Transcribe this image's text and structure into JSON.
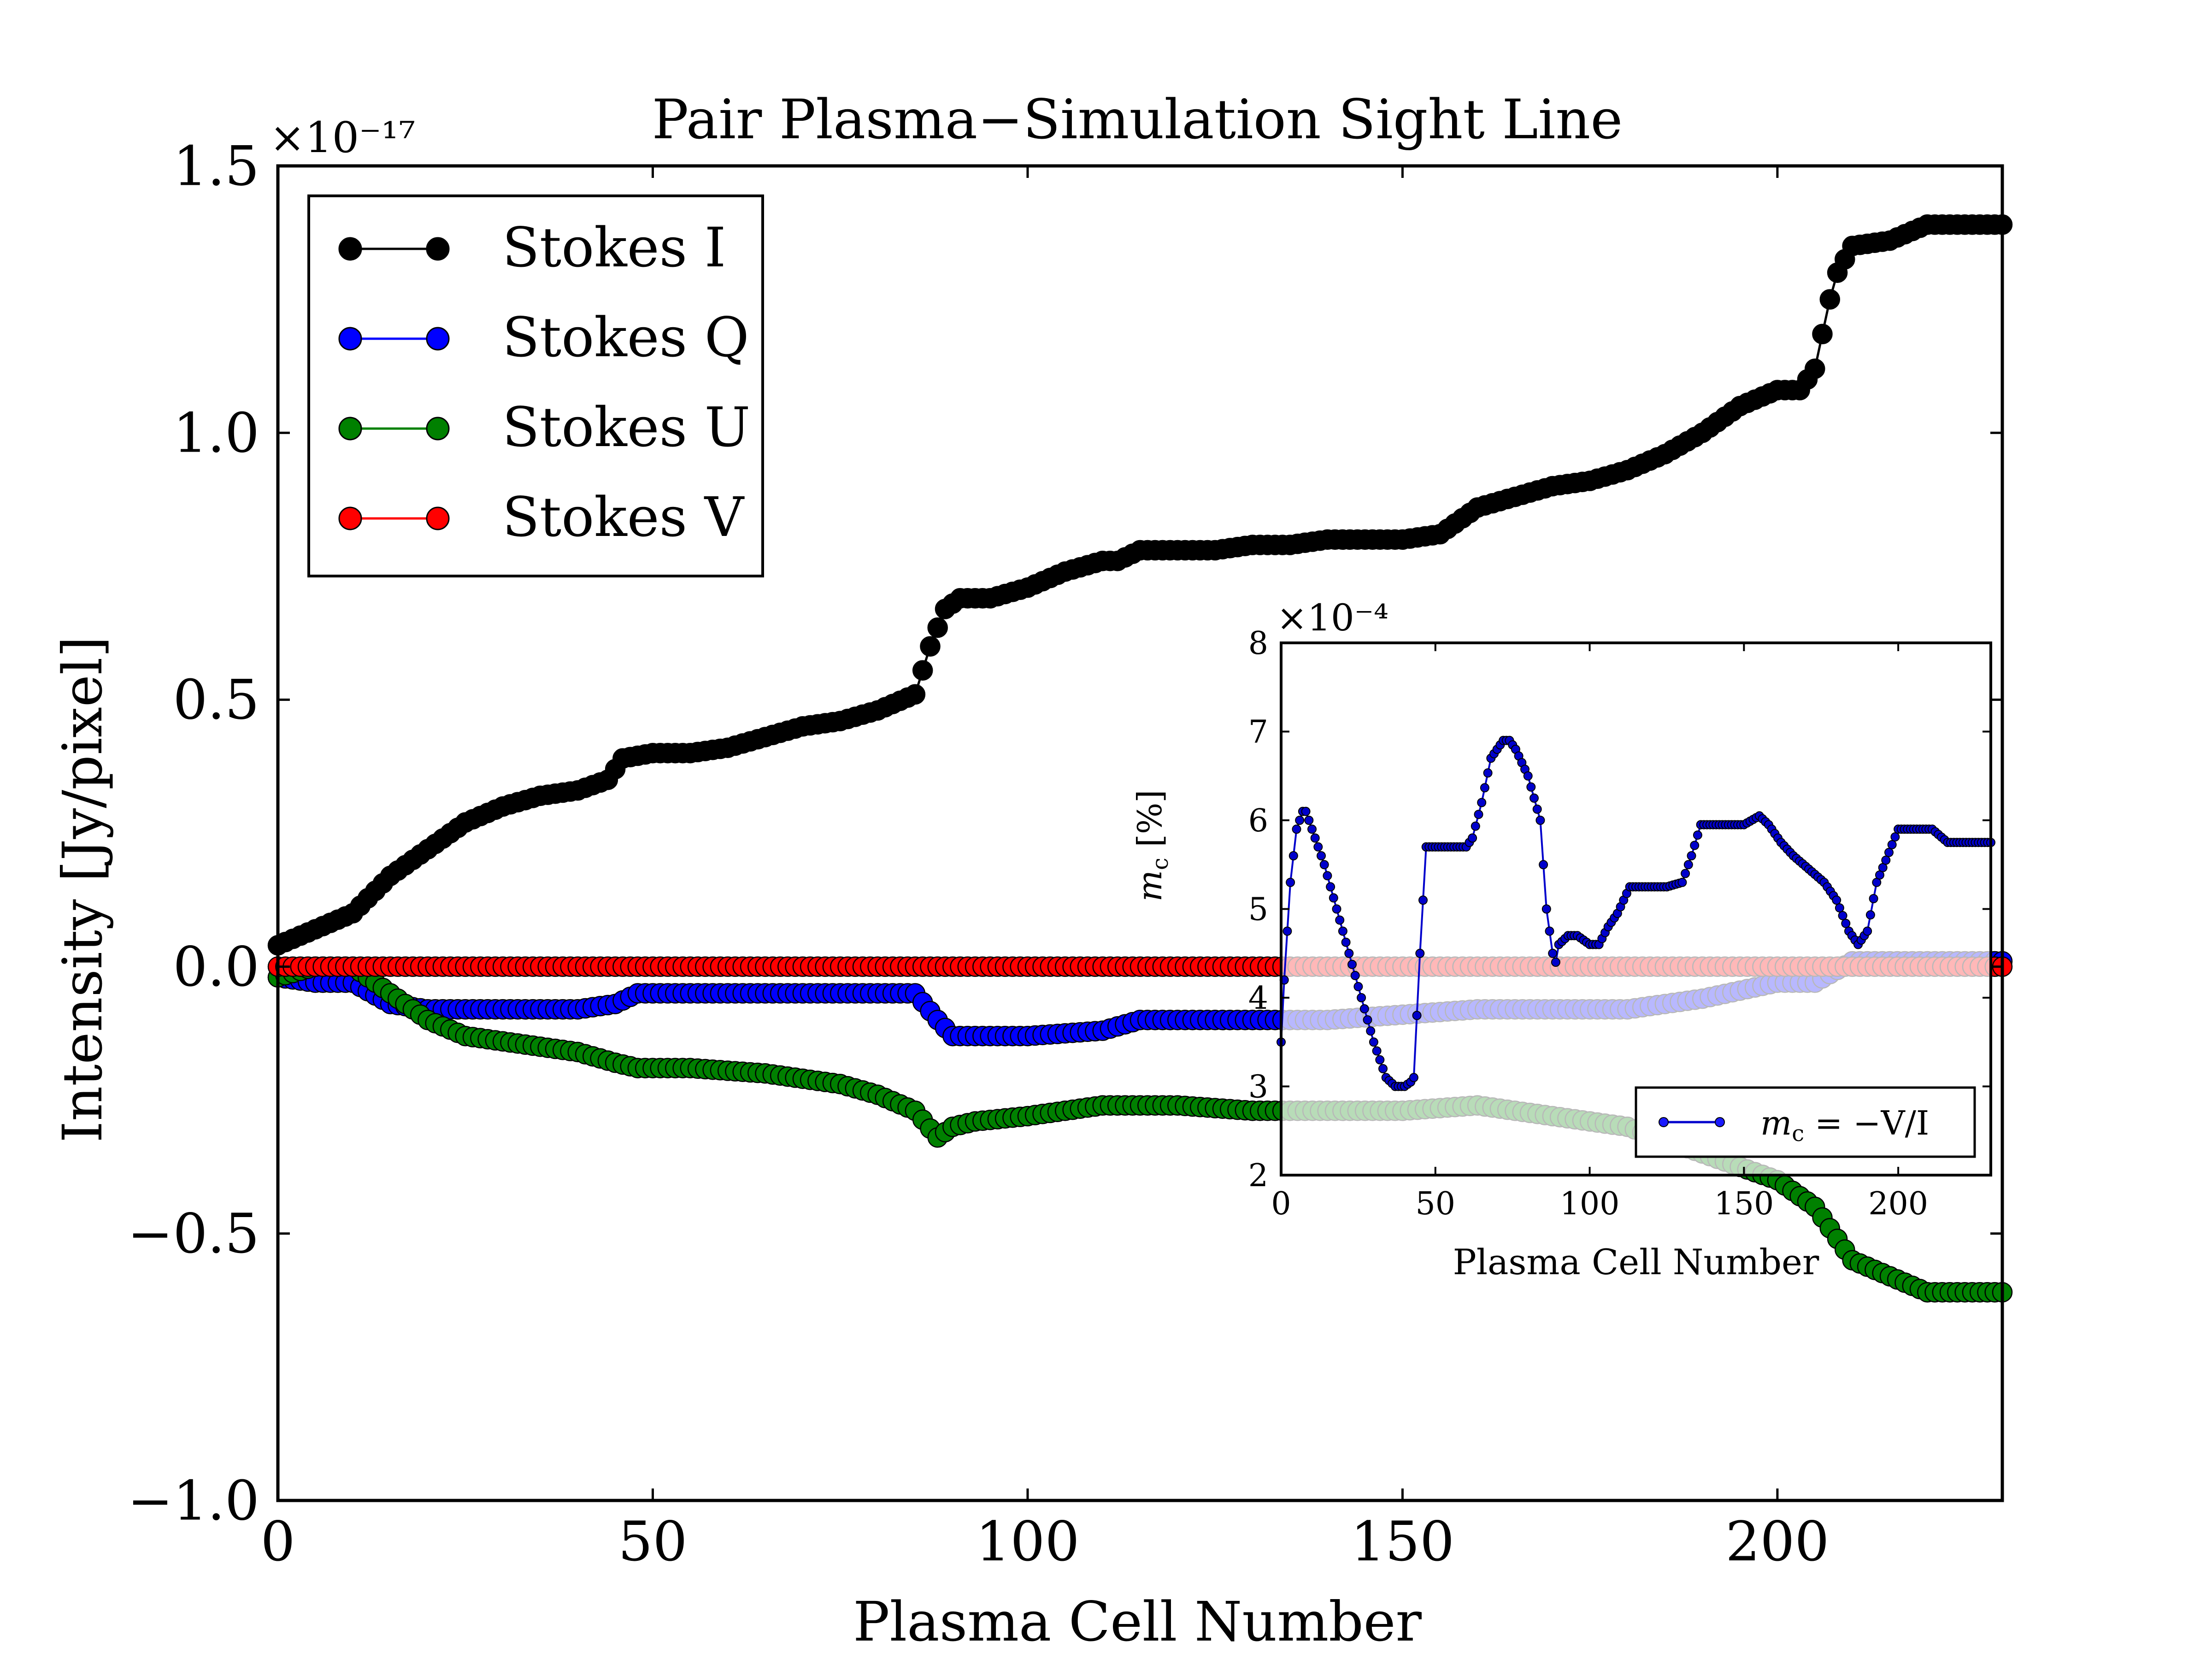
{
  "chart_data": [
    {
      "type": "line",
      "title": "Pair Plasma−Simulation Sight Line",
      "xlabel": "Plasma Cell Number",
      "ylabel": "Intensity [Jy/pixel]",
      "offset_label": "×10⁻¹⁷",
      "xlim": [
        0,
        230
      ],
      "ylim": [
        -1.0,
        1.5
      ],
      "xticks": [
        0,
        50,
        100,
        150,
        200
      ],
      "xtick_labels": [
        "0",
        "50",
        "100",
        "150",
        "200"
      ],
      "yticks": [
        -1.0,
        -0.5,
        0.0,
        0.5,
        1.0,
        1.5
      ],
      "ytick_labels": [
        "−1.0",
        "−0.5",
        "0.0",
        "0.5",
        "1.0",
        "1.5"
      ],
      "legend_position": "top-left",
      "series": [
        {
          "name": "Stokes I",
          "color": "#000000",
          "x": [
            0,
            5,
            10,
            15,
            20,
            25,
            30,
            35,
            40,
            44,
            46,
            50,
            55,
            60,
            65,
            70,
            75,
            80,
            85,
            87,
            89,
            91,
            95,
            100,
            105,
            110,
            112,
            115,
            120,
            125,
            130,
            135,
            140,
            145,
            150,
            155,
            160,
            165,
            170,
            175,
            180,
            185,
            190,
            195,
            200,
            203,
            205,
            207,
            208,
            210,
            215,
            220,
            230
          ],
          "values": [
            0.04,
            0.07,
            0.1,
            0.17,
            0.22,
            0.27,
            0.3,
            0.32,
            0.33,
            0.35,
            0.39,
            0.4,
            0.4,
            0.41,
            0.43,
            0.45,
            0.46,
            0.48,
            0.51,
            0.6,
            0.67,
            0.69,
            0.69,
            0.71,
            0.74,
            0.76,
            0.76,
            0.78,
            0.78,
            0.78,
            0.79,
            0.79,
            0.8,
            0.8,
            0.8,
            0.81,
            0.86,
            0.88,
            0.9,
            0.91,
            0.93,
            0.96,
            1.0,
            1.05,
            1.08,
            1.08,
            1.12,
            1.25,
            1.3,
            1.35,
            1.36,
            1.39,
            1.39
          ]
        },
        {
          "name": "Stokes Q",
          "color": "#0000ff",
          "x": [
            0,
            5,
            10,
            15,
            20,
            30,
            40,
            45,
            48,
            55,
            65,
            75,
            85,
            88,
            90,
            92,
            100,
            110,
            115,
            120,
            130,
            140,
            150,
            160,
            170,
            180,
            190,
            200,
            205,
            210,
            220,
            230
          ],
          "values": [
            -0.02,
            -0.03,
            -0.03,
            -0.07,
            -0.08,
            -0.08,
            -0.08,
            -0.07,
            -0.05,
            -0.05,
            -0.05,
            -0.05,
            -0.05,
            -0.1,
            -0.13,
            -0.13,
            -0.13,
            -0.12,
            -0.1,
            -0.1,
            -0.1,
            -0.1,
            -0.09,
            -0.08,
            -0.08,
            -0.08,
            -0.06,
            -0.03,
            -0.03,
            0.01,
            0.01,
            0.01
          ]
        },
        {
          "name": "Stokes U",
          "color": "#008000",
          "x": [
            0,
            5,
            10,
            15,
            20,
            25,
            30,
            35,
            40,
            45,
            48,
            55,
            65,
            70,
            75,
            80,
            85,
            88,
            90,
            93,
            100,
            105,
            110,
            115,
            120,
            130,
            140,
            150,
            160,
            170,
            180,
            190,
            200,
            205,
            210,
            215,
            220,
            230
          ],
          "values": [
            -0.02,
            0.0,
            0.0,
            -0.05,
            -0.1,
            -0.13,
            -0.14,
            -0.15,
            -0.16,
            -0.18,
            -0.19,
            -0.19,
            -0.2,
            -0.21,
            -0.22,
            -0.24,
            -0.27,
            -0.32,
            -0.3,
            -0.29,
            -0.28,
            -0.27,
            -0.26,
            -0.26,
            -0.26,
            -0.27,
            -0.27,
            -0.27,
            -0.26,
            -0.28,
            -0.3,
            -0.35,
            -0.4,
            -0.45,
            -0.55,
            -0.58,
            -0.61,
            -0.61
          ]
        },
        {
          "name": "Stokes V",
          "color": "#ff0000",
          "x": [
            0,
            230
          ],
          "values": [
            0.0,
            0.0
          ]
        }
      ]
    },
    {
      "type": "line",
      "inset": true,
      "xlabel": "Plasma Cell Number",
      "ylabel": "m_c [%]",
      "ylabel_main": "m",
      "ylabel_sub": "c",
      "ylabel_rest": " [%]",
      "offset_label": "×10⁻⁴",
      "xlim": [
        0,
        230
      ],
      "ylim": [
        2,
        8
      ],
      "xticks": [
        0,
        50,
        100,
        150,
        200
      ],
      "xtick_labels": [
        "0",
        "50",
        "100",
        "150",
        "200"
      ],
      "yticks": [
        2,
        3,
        4,
        5,
        6,
        7,
        8
      ],
      "ytick_labels": [
        "2",
        "3",
        "4",
        "5",
        "6",
        "7",
        "8"
      ],
      "legend_position": "bottom-right",
      "legend_label": "m_c = −V/I",
      "legend_main": "m",
      "legend_sub": "c",
      "legend_rest": " = −V/I",
      "series": [
        {
          "name": "m_c = −V/I",
          "color": "#0000cc",
          "x": [
            0,
            1,
            3,
            5,
            7,
            8,
            10,
            14,
            18,
            22,
            26,
            30,
            34,
            37,
            39,
            40,
            42,
            43,
            45,
            47,
            50,
            60,
            62,
            65,
            68,
            72,
            74,
            76,
            80,
            84,
            86,
            88,
            89,
            90,
            93,
            96,
            100,
            103,
            106,
            109,
            111,
            113,
            116,
            120,
            125,
            130,
            133,
            136,
            140,
            150,
            155,
            158,
            162,
            166,
            171,
            176,
            180,
            184,
            187,
            190,
            193,
            196,
            200,
            206,
            211,
            216,
            230
          ],
          "values": [
            3.5,
            4.2,
            5.3,
            5.9,
            6.1,
            6.1,
            5.9,
            5.5,
            5.0,
            4.5,
            4.0,
            3.5,
            3.1,
            3.0,
            3.0,
            3.0,
            3.05,
            3.1,
            4.5,
            5.7,
            5.7,
            5.7,
            5.8,
            6.2,
            6.7,
            6.9,
            6.9,
            6.8,
            6.5,
            6.0,
            5.0,
            4.5,
            4.4,
            4.6,
            4.7,
            4.7,
            4.6,
            4.6,
            4.8,
            4.95,
            5.1,
            5.25,
            5.25,
            5.25,
            5.25,
            5.3,
            5.6,
            5.95,
            5.95,
            5.95,
            6.05,
            5.95,
            5.75,
            5.6,
            5.45,
            5.3,
            5.1,
            4.75,
            4.6,
            4.75,
            5.3,
            5.55,
            5.9,
            5.9,
            5.9,
            5.75,
            5.75
          ]
        }
      ]
    }
  ]
}
